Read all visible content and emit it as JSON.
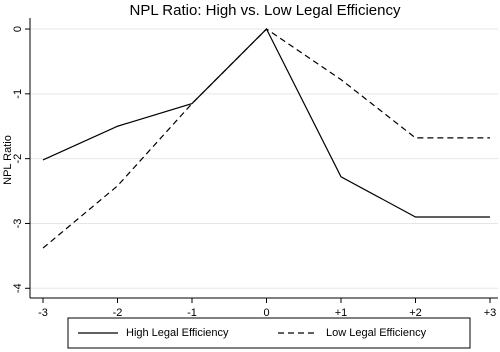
{
  "chart_data": {
    "type": "line",
    "title": "NPL Ratio: High vs. Low Legal Efficiency",
    "y_label": "NPL Ratio",
    "categories": [
      "-3",
      "-2",
      "-1",
      "0",
      "+1",
      "+2",
      "+3"
    ],
    "series": [
      {
        "name": "High Legal Efficiency",
        "color": "#000000",
        "dash": "solid",
        "values": [
          -2.02,
          -1.5,
          -1.15,
          0,
          -2.28,
          -2.9,
          -2.9
        ]
      },
      {
        "name": "Low Legal Efficiency",
        "color": "#000000",
        "dash": "dashed",
        "values": [
          -3.38,
          -2.42,
          -1.15,
          0,
          -0.78,
          -1.68,
          -1.68
        ]
      }
    ],
    "ylim": [
      -4.15,
      0.17
    ],
    "yticks": [
      -4,
      -3,
      -2,
      -1,
      0
    ],
    "grid": true,
    "legend": "bottom"
  }
}
